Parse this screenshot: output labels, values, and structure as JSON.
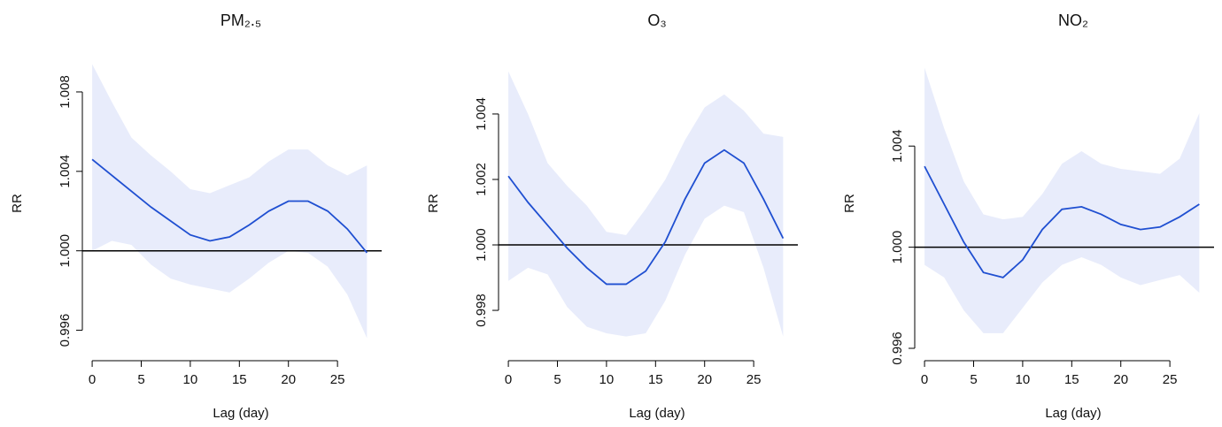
{
  "chart_data": [
    {
      "type": "line",
      "title": "PM₂.₅",
      "xlabel": "Lag (day)",
      "ylabel": "RR",
      "x": [
        0,
        2,
        4,
        6,
        8,
        10,
        12,
        14,
        16,
        18,
        20,
        22,
        24,
        26,
        28
      ],
      "series": [
        {
          "color": "#1f4fd1",
          "band_color": "#e8ecfb",
          "values": [
            1.0046,
            1.0038,
            1.003,
            1.0022,
            1.0015,
            1.0008,
            1.0005,
            1.0007,
            1.0013,
            1.002,
            1.0025,
            1.0025,
            1.002,
            1.0011,
            0.9999
          ],
          "lower": [
            1.0,
            1.0005,
            1.0003,
            0.9993,
            0.9986,
            0.9983,
            0.9981,
            0.9979,
            0.9986,
            0.9994,
            1.0,
            0.9999,
            0.9992,
            0.9978,
            0.9956
          ],
          "upper": [
            1.0094,
            1.0075,
            1.0057,
            1.0048,
            1.004,
            1.0031,
            1.0029,
            1.0033,
            1.0037,
            1.0045,
            1.0051,
            1.0051,
            1.0043,
            1.0038,
            1.0043
          ]
        }
      ],
      "hline": 1,
      "xlim": [
        -1,
        29.5
      ],
      "xticks": [
        0,
        5,
        10,
        15,
        20,
        25
      ],
      "ylim": [
        0.99509,
        1.00969
      ],
      "yticks": [
        0.996,
        {
          "value": 1,
          "label": "1.000"
        },
        1.004,
        1.008
      ]
    },
    {
      "type": "line",
      "title": "O₃",
      "xlabel": "Lag (day)",
      "ylabel": "RR",
      "x": [
        0,
        2,
        4,
        6,
        8,
        10,
        12,
        14,
        16,
        18,
        20,
        22,
        24,
        26,
        28
      ],
      "series": [
        {
          "color": "#1f4fd1",
          "band_color": "#e8ecfb",
          "values": [
            1.0021,
            1.0013,
            1.0006,
            0.9999,
            0.9993,
            0.9988,
            0.9988,
            0.9992,
            1.0001,
            1.0014,
            1.0025,
            1.0029,
            1.0025,
            1.0014,
            1.0002
          ],
          "lower": [
            0.9989,
            0.9993,
            0.9991,
            0.9981,
            0.9975,
            0.9973,
            0.9972,
            0.9973,
            0.9983,
            0.9997,
            1.0008,
            1.0012,
            1.001,
            0.9993,
            0.9972
          ],
          "upper": [
            1.0053,
            1.004,
            1.0025,
            1.0018,
            1.0012,
            1.0004,
            1.0003,
            1.0011,
            1.002,
            1.0032,
            1.0042,
            1.0046,
            1.0041,
            1.0034,
            1.0033
          ]
        }
      ],
      "hline": 1,
      "xlim": [
        -1,
        29.5
      ],
      "xticks": [
        0,
        5,
        10,
        15,
        20,
        25
      ],
      "ylim": [
        0.99684,
        1.0057
      ],
      "yticks": [
        0.998,
        {
          "value": 1,
          "label": "1.000"
        },
        1.002,
        1.004
      ]
    },
    {
      "type": "line",
      "title": "NO₂",
      "xlabel": "Lag (day)",
      "ylabel": "RR",
      "x": [
        0,
        2,
        4,
        6,
        8,
        10,
        12,
        14,
        16,
        18,
        20,
        22,
        24,
        26,
        28
      ],
      "series": [
        {
          "color": "#1f4fd1",
          "band_color": "#e8ecfb",
          "values": [
            1.0032,
            1.0017,
            1.0002,
            0.999,
            0.9988,
            0.9995,
            1.0007,
            1.0015,
            1.0016,
            1.0013,
            1.0009,
            1.0007,
            1.0008,
            1.0012,
            1.0017
          ],
          "lower": [
            0.9993,
            0.9988,
            0.9975,
            0.9966,
            0.9966,
            0.9976,
            0.9986,
            0.9993,
            0.9996,
            0.9993,
            0.9988,
            0.9985,
            0.9987,
            0.9989,
            0.9982
          ],
          "upper": [
            1.0071,
            1.0047,
            1.0026,
            1.0013,
            1.0011,
            1.0012,
            1.0021,
            1.0033,
            1.0038,
            1.0033,
            1.0031,
            1.003,
            1.0029,
            1.0035,
            1.0053
          ]
        }
      ],
      "hline": 1,
      "xlim": [
        -1,
        29.5
      ],
      "xticks": [
        0,
        5,
        10,
        15,
        20,
        25
      ],
      "ylim": [
        0.996,
        1.00747
      ],
      "yticks": [
        0.996,
        {
          "value": 1,
          "label": "1.000"
        },
        1.004
      ]
    }
  ]
}
